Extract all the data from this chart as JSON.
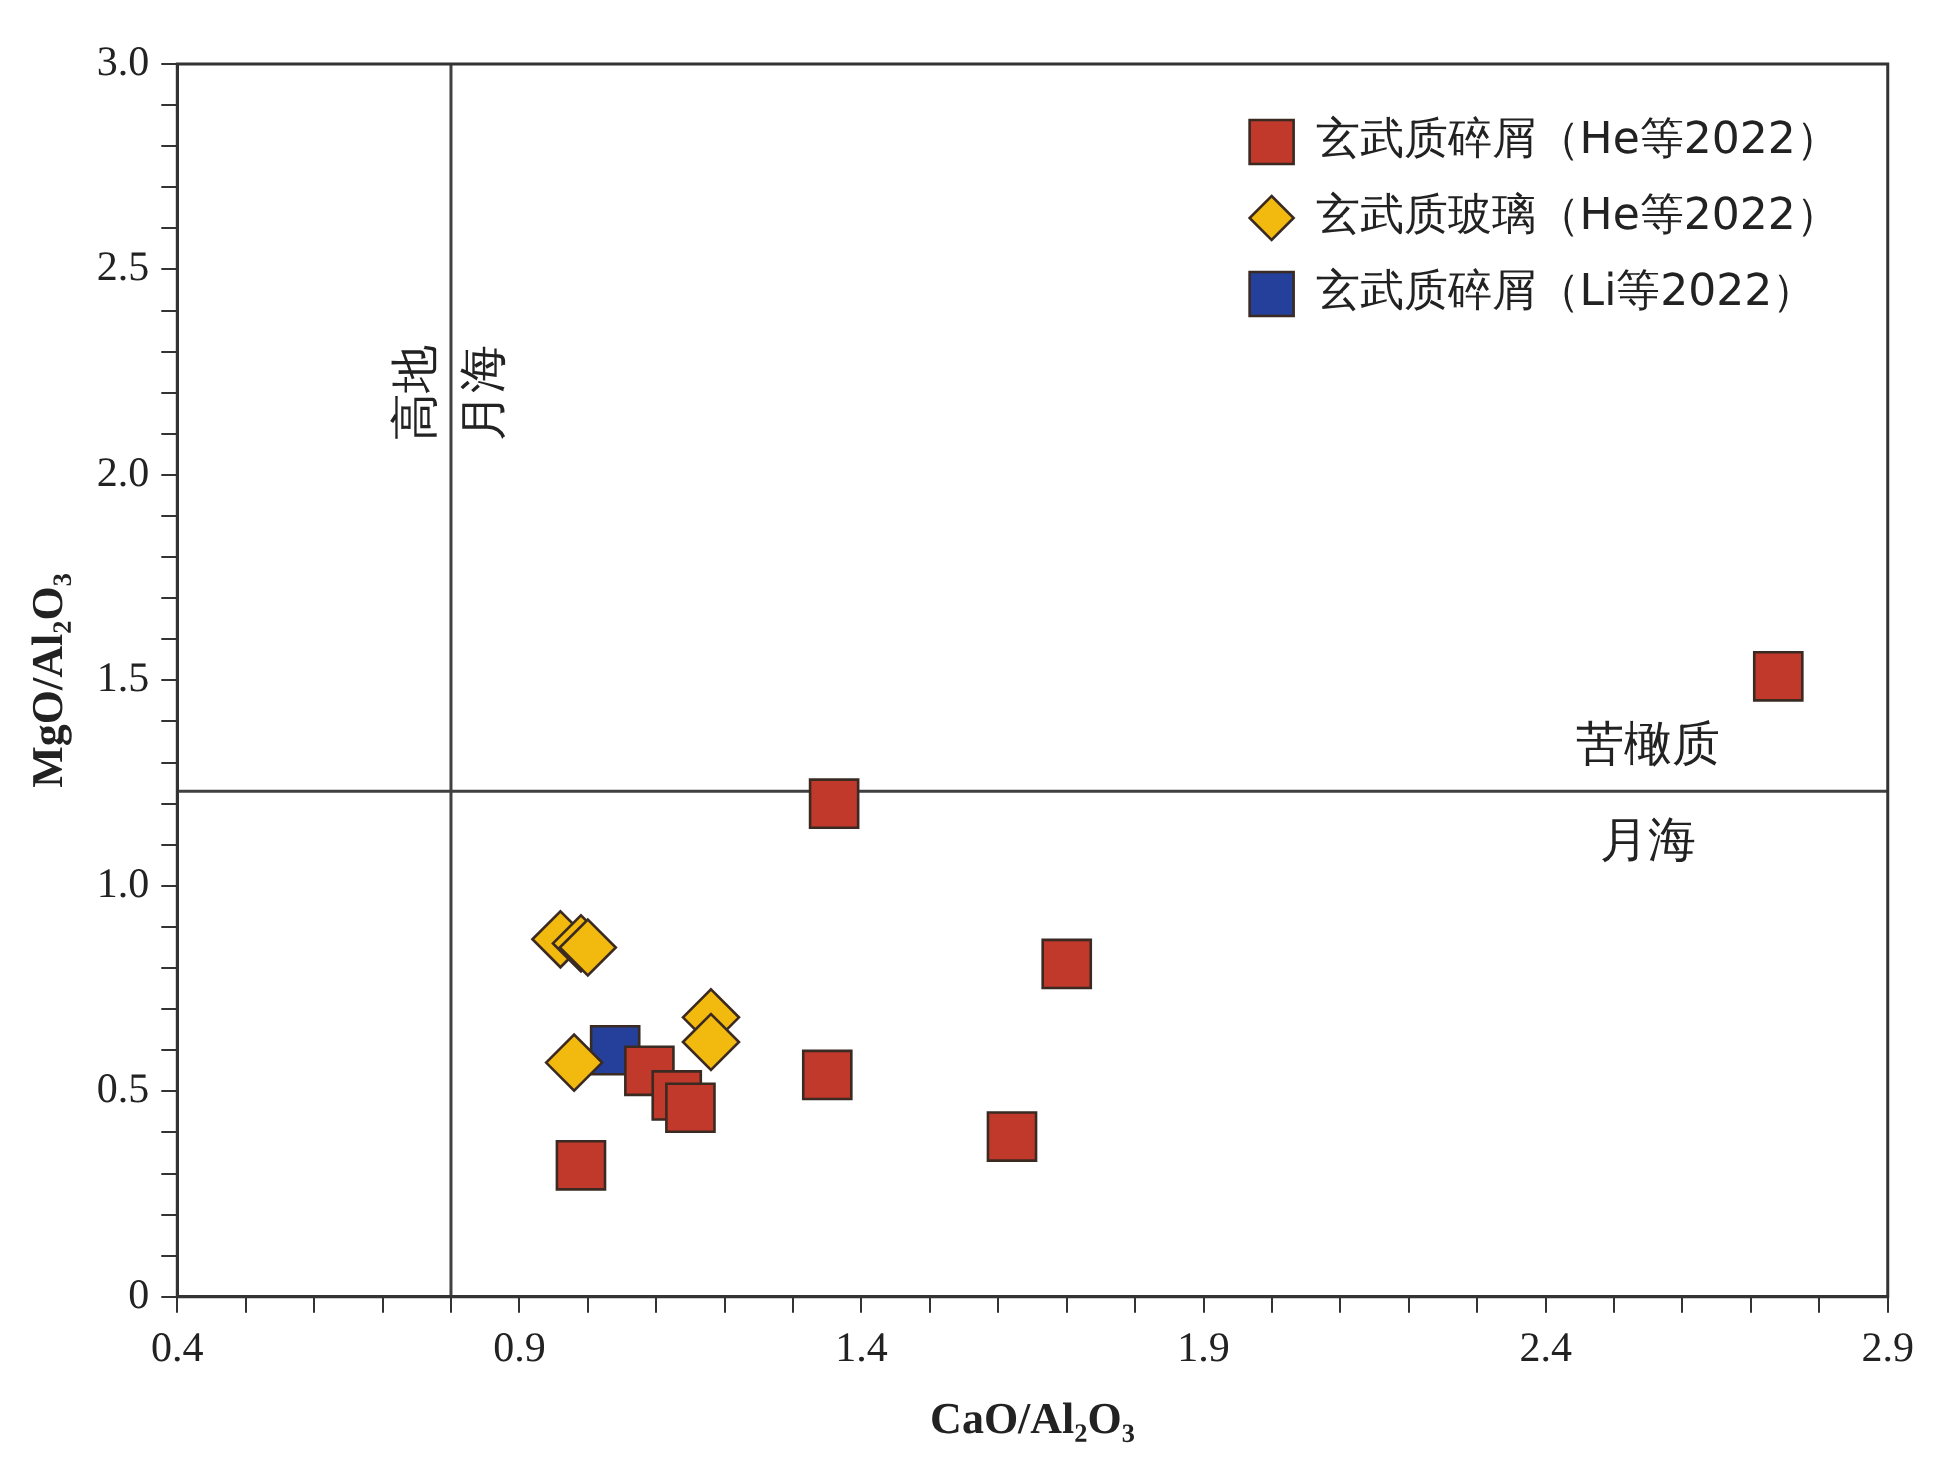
{
  "chart_data": {
    "type": "scatter",
    "xlabel": "CaO/Al₂O₃",
    "ylabel": "MgO/Al₂O₃",
    "xlim": [
      0.4,
      2.9
    ],
    "ylim": [
      0,
      3.0
    ],
    "xticks": [
      0.4,
      {
        "value": 0.5,
        "label": null
      },
      {
        "value": 0.6,
        "label": null
      },
      {
        "value": 0.7,
        "label": null
      },
      {
        "value": 0.8,
        "label": null
      },
      0.9,
      {
        "value": 1.0,
        "label": null
      },
      {
        "value": 1.1,
        "label": null
      },
      {
        "value": 1.2,
        "label": null
      },
      {
        "value": 1.3,
        "label": null
      },
      1.4,
      {
        "value": 1.5,
        "label": null
      },
      {
        "value": 1.6,
        "label": null
      },
      {
        "value": 1.7,
        "label": null
      },
      {
        "value": 1.8,
        "label": null
      },
      1.9,
      {
        "value": 2.0,
        "label": null
      },
      {
        "value": 2.1,
        "label": null
      },
      {
        "value": 2.2,
        "label": null
      },
      {
        "value": 2.3,
        "label": null
      },
      2.4,
      {
        "value": 2.5,
        "label": null
      },
      {
        "value": 2.6,
        "label": null
      },
      {
        "value": 2.7,
        "label": null
      },
      {
        "value": 2.8,
        "label": null
      },
      2.9
    ],
    "yticks": [
      0,
      {
        "value": 0.1,
        "label": null
      },
      {
        "value": 0.2,
        "label": null
      },
      {
        "value": 0.3,
        "label": null
      },
      {
        "value": 0.4,
        "label": null
      },
      0.5,
      {
        "value": 0.6,
        "label": null
      },
      {
        "value": 0.7,
        "label": null
      },
      {
        "value": 0.8,
        "label": null
      },
      {
        "value": 0.9,
        "label": null
      },
      {
        "value": 1.0,
        "label": "1.0"
      },
      {
        "value": 1.1,
        "label": null
      },
      {
        "value": 1.2,
        "label": null
      },
      {
        "value": 1.3,
        "label": null
      },
      {
        "value": 1.4,
        "label": null
      },
      1.5,
      {
        "value": 1.6,
        "label": null
      },
      {
        "value": 1.7,
        "label": null
      },
      {
        "value": 1.8,
        "label": null
      },
      {
        "value": 1.9,
        "label": null
      },
      {
        "value": 2.0,
        "label": "2.0"
      },
      {
        "value": 2.1,
        "label": null
      },
      {
        "value": 2.2,
        "label": null
      },
      {
        "value": 2.3,
        "label": null
      },
      {
        "value": 2.4,
        "label": null
      },
      2.5,
      {
        "value": 2.6,
        "label": null
      },
      {
        "value": 2.7,
        "label": null
      },
      {
        "value": 2.8,
        "label": null
      },
      {
        "value": 2.9,
        "label": null
      },
      {
        "value": 3.0,
        "label": "3.0"
      }
    ],
    "grid": false,
    "legend": "top right",
    "ref_lines": [
      {
        "axis": "x",
        "value": 0.8,
        "color": "#404040"
      },
      {
        "axis": "y",
        "value": 1.23,
        "color": "#404040"
      }
    ],
    "annotations": [
      "高地",
      "月海",
      "苦橄质",
      "月海"
    ],
    "series": [
      {
        "name": "玄武质碎屑（He等2022）",
        "color": "#c0392b",
        "marker": "square",
        "x": [
          0.99,
          1.09,
          1.13,
          1.15,
          1.35,
          1.62,
          1.7,
          1.36,
          2.74
        ],
        "values": [
          0.32,
          0.55,
          0.49,
          0.46,
          0.54,
          0.39,
          0.81,
          1.2,
          1.51
        ]
      },
      {
        "name": "玄武质玻璃（He等2022）",
        "color": "#f2b90f",
        "marker": "diamond",
        "x": [
          0.96,
          0.99,
          1.0,
          0.98,
          1.18,
          1.18
        ],
        "values": [
          0.87,
          0.86,
          0.85,
          0.57,
          0.68,
          0.62
        ]
      },
      {
        "name": "玄武质碎屑（Li等2022）",
        "color": "#24409a",
        "marker": "square",
        "x": [
          1.04
        ],
        "values": [
          0.6
        ]
      }
    ]
  }
}
